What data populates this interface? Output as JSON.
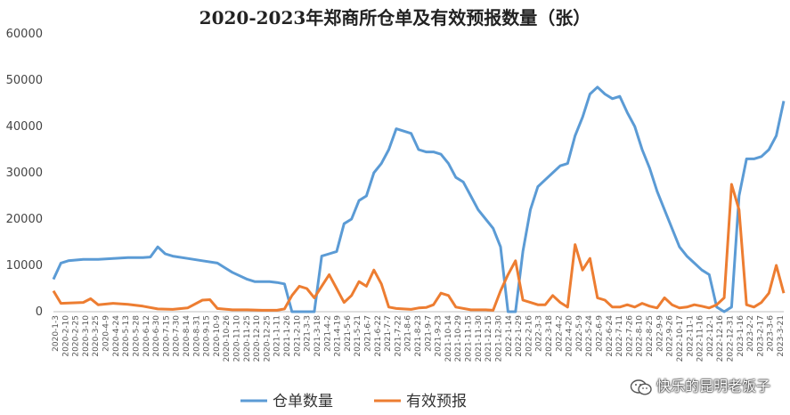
{
  "chart_data": {
    "type": "line",
    "title": "2020-2023年郑商所仓单及有效预报数量（张）",
    "xlabel": "",
    "ylabel": "",
    "ylim": [
      0,
      60000
    ],
    "yticks": [
      "0",
      "10000",
      "20000",
      "30000",
      "40000",
      "50000",
      "60000"
    ],
    "grid": false,
    "legend_position": "bottom",
    "x_tick_labels": [
      "2020-1-3",
      "2020-2-10",
      "2020-2-25",
      "2020-3-10",
      "2020-3-25",
      "2020-4-9",
      "2020-4-24",
      "2020-5-13",
      "2020-5-28",
      "2020-6-12",
      "2020-6-30",
      "2020-7-15",
      "2020-7-30",
      "2020-8-14",
      "2020-8-31",
      "2020-9-15",
      "2020-10-9",
      "2020-10-26",
      "2020-11-10",
      "2020-11-25",
      "2020-12-10",
      "2020-12-25",
      "2021-1-11",
      "2021-1-26",
      "2021-2-10",
      "2021-3-3",
      "2021-3-18",
      "2021-4-2",
      "2021-4-19",
      "2021-5-6",
      "2021-5-21",
      "2021-6-7",
      "2021-6-22",
      "2021-7-7",
      "2021-7-22",
      "2021-8-6",
      "2021-8-23",
      "2021-9-7",
      "2021-9-23",
      "2021-10-14",
      "2021-10-29",
      "2021-11-15",
      "2021-11-30",
      "2021-12-15",
      "2021-12-30",
      "2022-1-14",
      "2022-1-29",
      "2022-2-16",
      "2022-3-3",
      "2022-3-18",
      "2022-4-2",
      "2022-4-20",
      "2022-5-9",
      "2022-5-24",
      "2022-6-9",
      "2022-6-24",
      "2022-7-11",
      "2022-7-26",
      "2022-8-10",
      "2022-8-25",
      "2022-9-9",
      "2022-9-26",
      "2022-10-17",
      "2022-11-1",
      "2022-11-16",
      "2022-12-1",
      "2022-12-16",
      "2022-12-31",
      "2023-1-16",
      "2023-2-2",
      "2023-2-17",
      "2023-3-6",
      "2023-3-21"
    ],
    "series": [
      {
        "name": "仓单数量",
        "color": "#5B9BD5",
        "points": [
          [
            0,
            7000
          ],
          [
            1,
            10500
          ],
          [
            2,
            11000
          ],
          [
            4,
            11300
          ],
          [
            6,
            11300
          ],
          [
            8,
            11500
          ],
          [
            10,
            11700
          ],
          [
            12,
            11700
          ],
          [
            13,
            11800
          ],
          [
            14,
            14000
          ],
          [
            15,
            12500
          ],
          [
            16,
            12000
          ],
          [
            18,
            11500
          ],
          [
            20,
            11000
          ],
          [
            22,
            10500
          ],
          [
            23,
            9500
          ],
          [
            24,
            8500
          ],
          [
            26,
            7000
          ],
          [
            27,
            6500
          ],
          [
            29,
            6500
          ],
          [
            30,
            6300
          ],
          [
            31,
            6000
          ],
          [
            32,
            0
          ],
          [
            33,
            0
          ],
          [
            34,
            0
          ],
          [
            35,
            0
          ],
          [
            36,
            12000
          ],
          [
            37,
            12500
          ],
          [
            38,
            13000
          ],
          [
            39,
            19000
          ],
          [
            40,
            20000
          ],
          [
            41,
            24000
          ],
          [
            42,
            25000
          ],
          [
            43,
            30000
          ],
          [
            44,
            32000
          ],
          [
            45,
            35000
          ],
          [
            46,
            39500
          ],
          [
            47,
            39000
          ],
          [
            48,
            38500
          ],
          [
            49,
            35000
          ],
          [
            50,
            34500
          ],
          [
            51,
            34500
          ],
          [
            52,
            34000
          ],
          [
            53,
            32000
          ],
          [
            54,
            29000
          ],
          [
            55,
            28000
          ],
          [
            56,
            25000
          ],
          [
            57,
            22000
          ],
          [
            58,
            20000
          ],
          [
            59,
            18000
          ],
          [
            60,
            14000
          ],
          [
            61,
            0
          ],
          [
            62,
            0
          ],
          [
            63,
            13000
          ],
          [
            64,
            22000
          ],
          [
            65,
            27000
          ],
          [
            66,
            28500
          ],
          [
            67,
            30000
          ],
          [
            68,
            31500
          ],
          [
            69,
            32000
          ],
          [
            70,
            38000
          ],
          [
            71,
            42000
          ],
          [
            72,
            47000
          ],
          [
            73,
            48500
          ],
          [
            74,
            47000
          ],
          [
            75,
            46000
          ],
          [
            76,
            46500
          ],
          [
            77,
            43000
          ],
          [
            78,
            40000
          ],
          [
            79,
            35000
          ],
          [
            80,
            31000
          ],
          [
            81,
            26000
          ],
          [
            82,
            22000
          ],
          [
            83,
            18000
          ],
          [
            84,
            14000
          ],
          [
            85,
            12000
          ],
          [
            86,
            10500
          ],
          [
            87,
            9000
          ],
          [
            88,
            8000
          ],
          [
            89,
            1000
          ],
          [
            90,
            0
          ],
          [
            91,
            1000
          ],
          [
            92,
            25000
          ],
          [
            93,
            33000
          ],
          [
            94,
            33000
          ],
          [
            95,
            33500
          ],
          [
            96,
            35000
          ],
          [
            97,
            38000
          ],
          [
            98,
            45500
          ]
        ]
      },
      {
        "name": "有效预报",
        "color": "#ED7D31",
        "points": [
          [
            0,
            4500
          ],
          [
            1,
            1800
          ],
          [
            4,
            2000
          ],
          [
            5,
            2800
          ],
          [
            6,
            1500
          ],
          [
            8,
            1800
          ],
          [
            10,
            1600
          ],
          [
            12,
            1200
          ],
          [
            14,
            600
          ],
          [
            16,
            500
          ],
          [
            18,
            800
          ],
          [
            20,
            2500
          ],
          [
            21,
            2600
          ],
          [
            22,
            700
          ],
          [
            24,
            400
          ],
          [
            26,
            400
          ],
          [
            28,
            300
          ],
          [
            30,
            300
          ],
          [
            31,
            600
          ],
          [
            32,
            3500
          ],
          [
            33,
            5500
          ],
          [
            34,
            5000
          ],
          [
            35,
            3000
          ],
          [
            36,
            5500
          ],
          [
            37,
            8000
          ],
          [
            38,
            5000
          ],
          [
            39,
            2000
          ],
          [
            40,
            3500
          ],
          [
            41,
            6500
          ],
          [
            42,
            5500
          ],
          [
            43,
            9000
          ],
          [
            44,
            6000
          ],
          [
            45,
            1000
          ],
          [
            46,
            700
          ],
          [
            47,
            600
          ],
          [
            48,
            500
          ],
          [
            49,
            800
          ],
          [
            50,
            900
          ],
          [
            51,
            1500
          ],
          [
            52,
            4000
          ],
          [
            53,
            3500
          ],
          [
            54,
            1000
          ],
          [
            56,
            400
          ],
          [
            58,
            400
          ],
          [
            59,
            300
          ],
          [
            60,
            4500
          ],
          [
            61,
            8000
          ],
          [
            62,
            11000
          ],
          [
            63,
            2500
          ],
          [
            64,
            2000
          ],
          [
            65,
            1500
          ],
          [
            66,
            1500
          ],
          [
            67,
            3500
          ],
          [
            68,
            2000
          ],
          [
            69,
            1000
          ],
          [
            70,
            14500
          ],
          [
            71,
            9000
          ],
          [
            72,
            11500
          ],
          [
            73,
            3000
          ],
          [
            74,
            2500
          ],
          [
            75,
            1000
          ],
          [
            76,
            1000
          ],
          [
            77,
            1500
          ],
          [
            78,
            1000
          ],
          [
            79,
            1800
          ],
          [
            80,
            1200
          ],
          [
            81,
            800
          ],
          [
            82,
            3000
          ],
          [
            83,
            1500
          ],
          [
            84,
            800
          ],
          [
            85,
            1000
          ],
          [
            86,
            1500
          ],
          [
            87,
            1200
          ],
          [
            88,
            800
          ],
          [
            89,
            1500
          ],
          [
            90,
            3000
          ],
          [
            91,
            27500
          ],
          [
            92,
            22000
          ],
          [
            93,
            1500
          ],
          [
            94,
            1000
          ],
          [
            95,
            2000
          ],
          [
            96,
            4000
          ],
          [
            97,
            10000
          ],
          [
            98,
            4000
          ]
        ]
      }
    ]
  },
  "watermark": {
    "text": "快乐的昆明老饭子"
  }
}
